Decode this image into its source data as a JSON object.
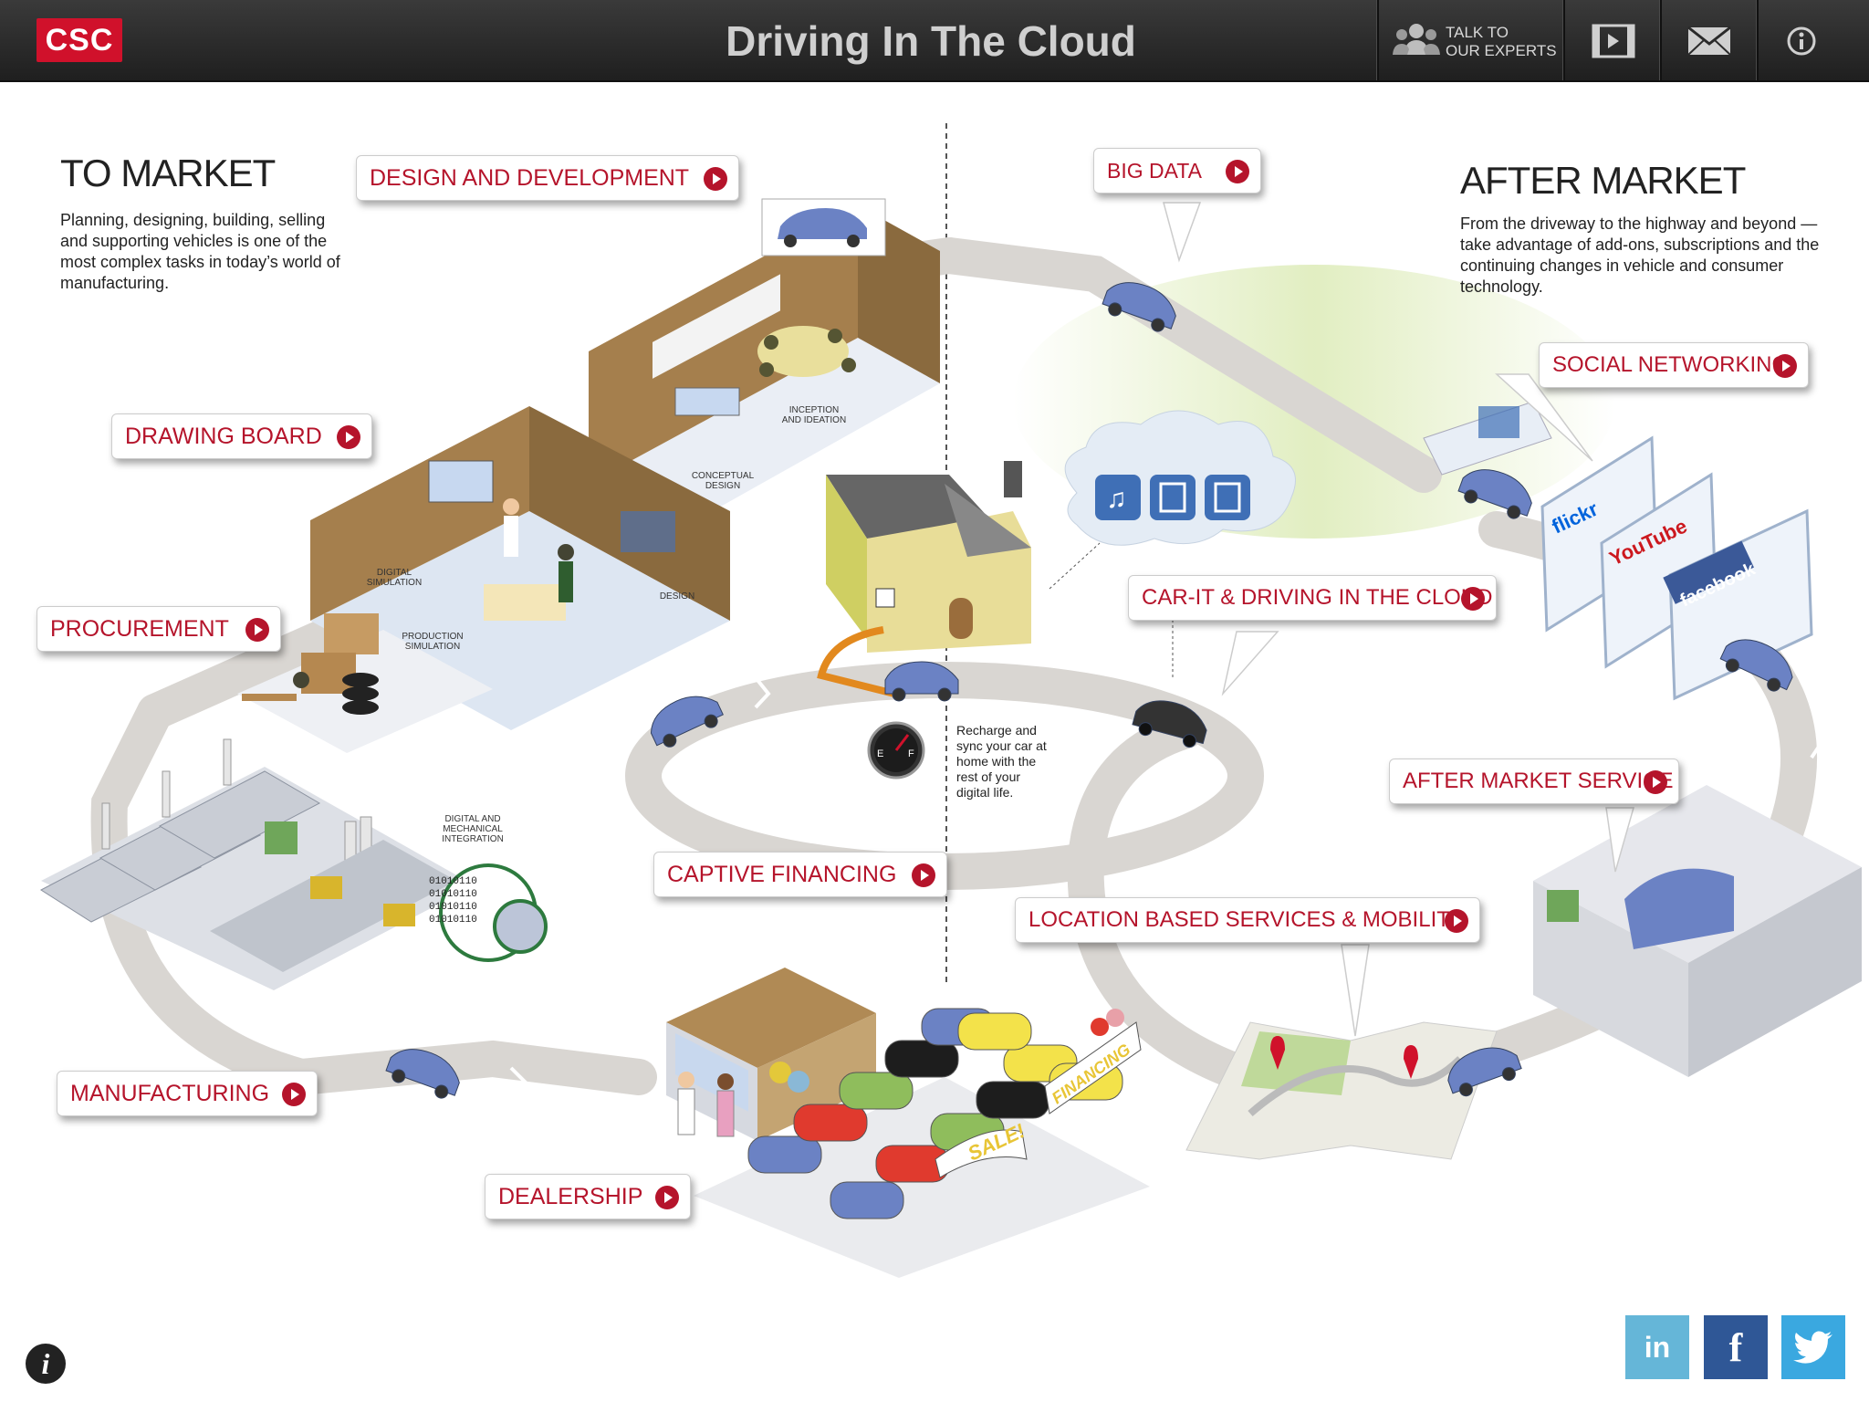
{
  "header": {
    "logo": "CSC",
    "title": "Driving In The Cloud",
    "talk_line1": "TALK TO",
    "talk_line2": "OUR EXPERTS"
  },
  "to_market": {
    "heading": "TO MARKET",
    "description": "Planning, designing, building, selling and supporting vehicles is one of the most complex tasks in today’s world of manufacturing."
  },
  "after_market": {
    "heading": "AFTER MARKET",
    "description": "From the driveway to the highway and beyond — take advantage of add-ons, subscriptions and the continuing changes in vehicle and consumer technology."
  },
  "buttons": {
    "design": "DESIGN AND DEVELOPMENT",
    "drawing": "DRAWING BOARD",
    "procurement": "PROCUREMENT",
    "manufacturing": "MANUFACTURING",
    "dealership": "DEALERSHIP",
    "captive": "CAPTIVE FINANCING",
    "bigdata": "BIG DATA",
    "social": "SOCIAL NETWORKING",
    "carit": "CAR-IT & DRIVING IN THE CLOUD",
    "aftermarket_service": "AFTER MARKET SERVICE",
    "location": "LOCATION BASED SERVICES & MOBILITY"
  },
  "labels": {
    "inception_1": "INCEPTION",
    "inception_2": "AND IDEATION",
    "conceptual_1": "CONCEPTUAL",
    "conceptual_2": "DESIGN",
    "digital_sim_1": "DIGITAL",
    "digital_sim_2": "SIMULATION",
    "production_sim_1": "PRODUCTION",
    "production_sim_2": "SIMULATION",
    "design": "DESIGN",
    "dmi_1": "DIGITAL AND",
    "dmi_2": "MECHANICAL",
    "dmi_3": "INTEGRATION",
    "sale": "SALE!",
    "financing": "FINANCING",
    "flickr": "flickr",
    "youtube": "YouTube",
    "facebook": "facebook",
    "binary": "01010110",
    "fuel_e": "E",
    "fuel_f": "F"
  },
  "recharge": {
    "line1": "Recharge and",
    "line2": "sync your car at",
    "line3": "home with the",
    "line4": "rest of your",
    "line5": "digital life."
  },
  "social_links": {
    "linkedin": "in",
    "facebook": "f"
  },
  "info_bottom": "i",
  "colors": {
    "header_bg": "#2a2a2a",
    "accent_red": "#b5142b",
    "csc_red": "#d0112b",
    "road": "#d9d6d2",
    "linkedin": "#65b6d8",
    "facebook": "#2f5796",
    "twitter": "#3aa8e0",
    "car_blue": "#6b82c4"
  }
}
